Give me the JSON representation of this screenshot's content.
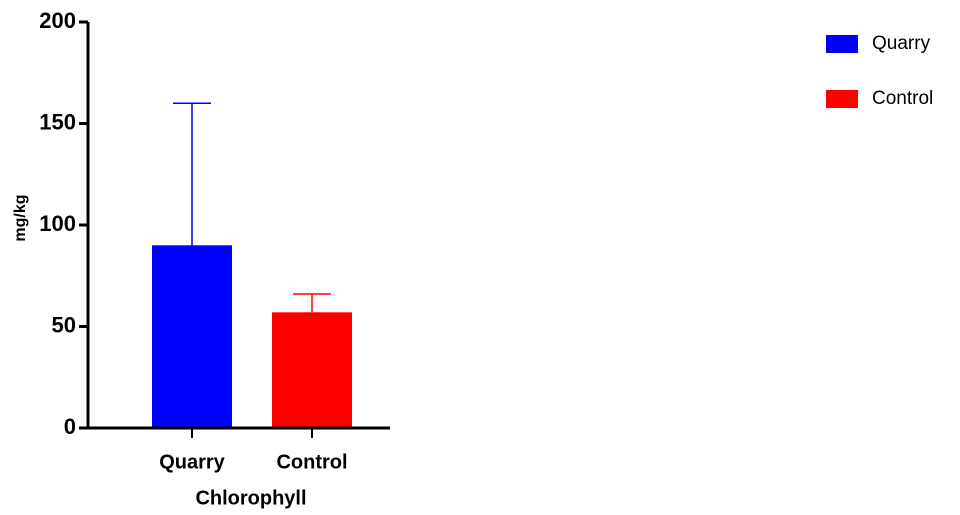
{
  "chart_data": {
    "type": "bar",
    "categories": [
      "Quarry",
      "Control"
    ],
    "values": [
      90,
      57
    ],
    "errors": [
      70,
      9
    ],
    "colors": [
      "#0000ff",
      "#ff0000"
    ],
    "x_label": "Chlorophyll",
    "y_label": "mg/kg",
    "ylim": [
      0,
      200
    ],
    "yticks": [
      0,
      50,
      100,
      150,
      200
    ],
    "legend": "top-right"
  }
}
